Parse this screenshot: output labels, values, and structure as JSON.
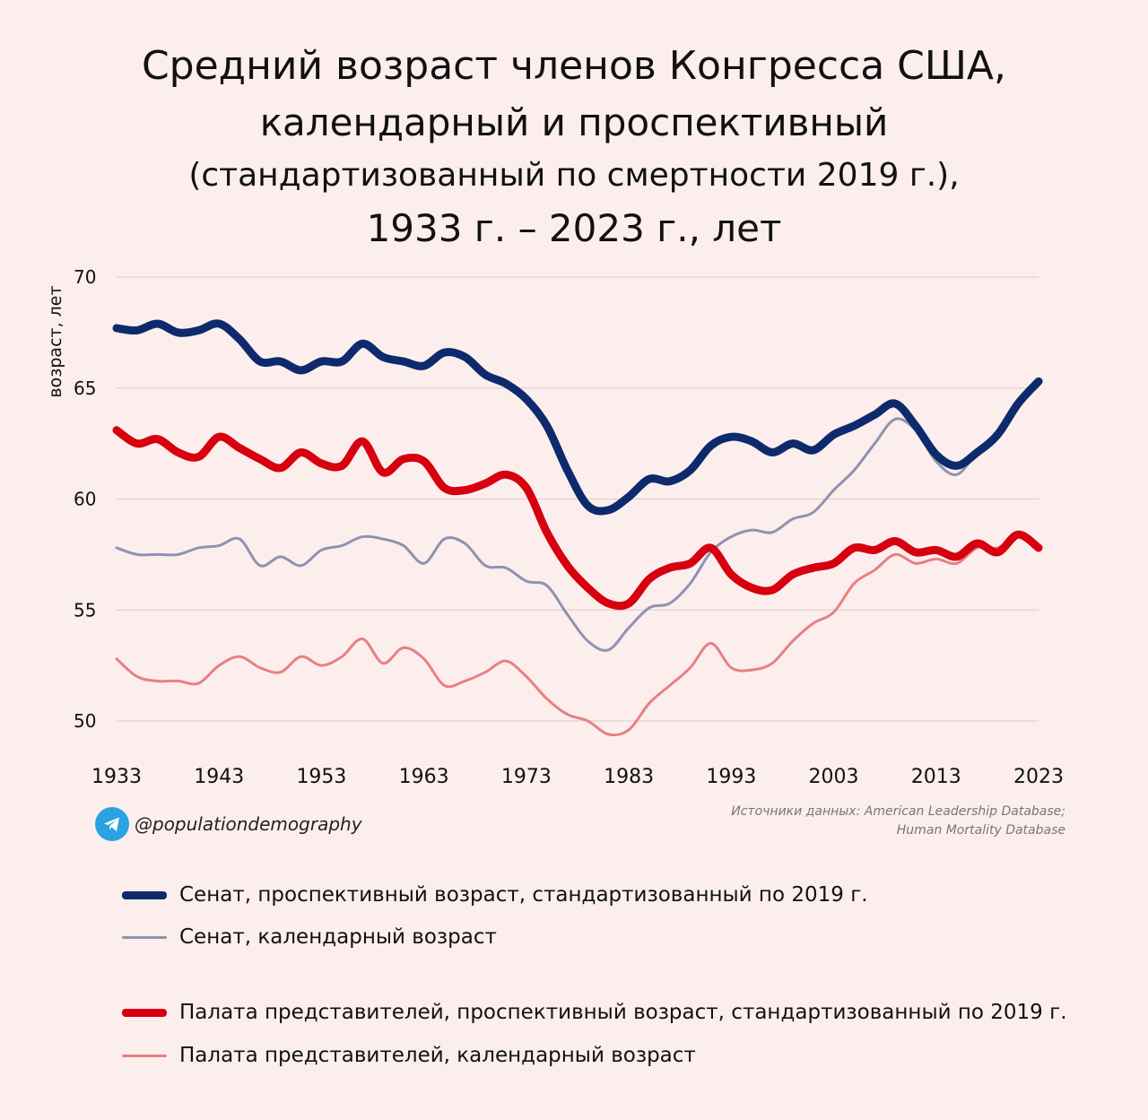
{
  "title": {
    "line1": "Средний возраст членов Конгресса США,",
    "line2": "календарный и проспективный",
    "line3": "(стандартизованный по смертности 2019 г.),",
    "line4": "1933 г. – 2023 г., лет"
  },
  "handle": "@populationdemography",
  "source": {
    "line1": "Источники данных: American Leadership Database;",
    "line2": "Human Mortality Database"
  },
  "chart_data": {
    "type": "line",
    "ylabel": "возраст, лет",
    "xlabel": "",
    "xlim": [
      1933,
      2023
    ],
    "ylim": [
      50,
      70
    ],
    "x_ticks": [
      1933,
      1943,
      1953,
      1963,
      1973,
      1983,
      1993,
      2003,
      2013,
      2023
    ],
    "y_ticks": [
      50,
      55,
      60,
      65,
      70
    ],
    "grid": true,
    "legend_position": "bottom",
    "x": [
      1933,
      1935,
      1937,
      1939,
      1941,
      1943,
      1945,
      1947,
      1949,
      1951,
      1953,
      1955,
      1957,
      1959,
      1961,
      1963,
      1965,
      1967,
      1969,
      1971,
      1973,
      1975,
      1977,
      1979,
      1981,
      1983,
      1985,
      1987,
      1989,
      1991,
      1993,
      1995,
      1997,
      1999,
      2001,
      2003,
      2005,
      2007,
      2009,
      2011,
      2013,
      2015,
      2017,
      2019,
      2021,
      2023
    ],
    "series": [
      {
        "name": "Сенат, проспективный возраст, стандартизованный по 2019 г.",
        "color": "#0d2a6c",
        "width": "thick",
        "values": [
          67.7,
          67.6,
          67.9,
          67.5,
          67.6,
          67.9,
          67.2,
          66.2,
          66.2,
          65.8,
          66.2,
          66.2,
          67.0,
          66.4,
          66.2,
          66.0,
          66.6,
          66.4,
          65.6,
          65.2,
          64.5,
          63.3,
          61.3,
          59.7,
          59.5,
          60.1,
          60.9,
          60.8,
          61.3,
          62.4,
          62.8,
          62.6,
          62.1,
          62.5,
          62.2,
          62.9,
          63.3,
          63.8,
          64.3,
          63.3,
          62.0,
          61.5,
          62.1,
          62.9,
          64.3,
          65.3
        ]
      },
      {
        "name": "Сенат, календарный возраст",
        "color": "#8d93b0",
        "width": "thin",
        "values": [
          57.8,
          57.5,
          57.5,
          57.5,
          57.8,
          57.9,
          58.2,
          57.0,
          57.4,
          57.0,
          57.7,
          57.9,
          58.3,
          58.2,
          57.9,
          57.1,
          58.2,
          58.0,
          57.0,
          56.9,
          56.3,
          56.1,
          54.8,
          53.6,
          53.2,
          54.2,
          55.1,
          55.3,
          56.2,
          57.6,
          58.3,
          58.6,
          58.5,
          59.1,
          59.4,
          60.4,
          61.3,
          62.5,
          63.6,
          63.1,
          61.7,
          61.1,
          62.1,
          62.9,
          64.3,
          65.3
        ]
      },
      {
        "name": "Палата представителей, проспективный возраст, стандартизованный по 2019 г.",
        "color": "#d6000f",
        "width": "thick",
        "values": [
          63.1,
          62.5,
          62.7,
          62.1,
          61.9,
          62.8,
          62.3,
          61.8,
          61.4,
          62.1,
          61.6,
          61.5,
          62.6,
          61.2,
          61.8,
          61.7,
          60.5,
          60.4,
          60.7,
          61.1,
          60.5,
          58.5,
          57.0,
          56.0,
          55.3,
          55.3,
          56.4,
          56.9,
          57.1,
          57.8,
          56.6,
          56.0,
          55.9,
          56.6,
          56.9,
          57.1,
          57.8,
          57.7,
          58.1,
          57.6,
          57.7,
          57.4,
          58.0,
          57.6,
          58.4,
          57.8
        ]
      },
      {
        "name": "Палата представителей, календарный возраст",
        "color": "#e88080",
        "width": "thin",
        "values": [
          52.8,
          52.0,
          51.8,
          51.8,
          51.7,
          52.5,
          52.9,
          52.4,
          52.2,
          52.9,
          52.5,
          52.9,
          53.7,
          52.6,
          53.3,
          52.8,
          51.6,
          51.8,
          52.2,
          52.7,
          52.0,
          51.0,
          50.3,
          50.0,
          49.4,
          49.6,
          50.8,
          51.6,
          52.4,
          53.5,
          52.4,
          52.3,
          52.6,
          53.6,
          54.4,
          54.9,
          56.2,
          56.8,
          57.5,
          57.1,
          57.3,
          57.1,
          57.8,
          57.8,
          58.3,
          57.8
        ]
      }
    ]
  },
  "legend": [
    {
      "label": "Сенат, проспективный возраст, стандартизованный по 2019 г.",
      "color": "#0d2a6c"
    },
    {
      "label": "Сенат, календарный возраст",
      "color": "#8d93b0"
    },
    {
      "label": "Палата представителей, проспективный возраст, стандартизованный по 2019 г.",
      "color": "#d6000f"
    },
    {
      "label": "Палата представителей, календарный возраст",
      "color": "#e88080"
    }
  ]
}
